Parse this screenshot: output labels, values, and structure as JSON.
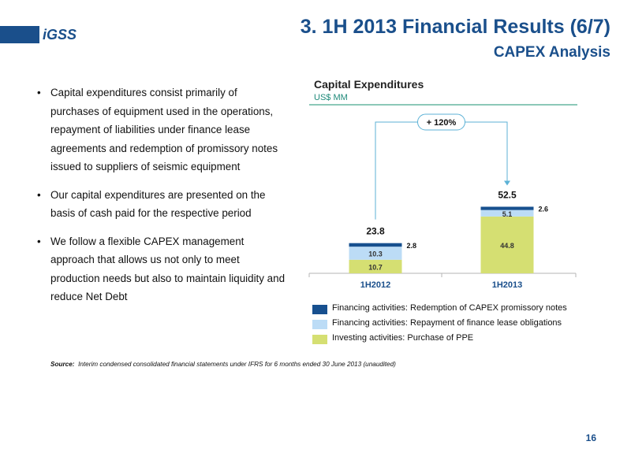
{
  "header": {
    "logo_text": "iGSS",
    "title": "3. 1H 2013 Financial Results (6/7)",
    "subtitle": "CAPEX Analysis"
  },
  "bullets": [
    "Capital expenditures consist primarily of purchases of equipment used in the operations, repayment of liabilities under finance lease agreements and redemption of promissory notes issued to suppliers of seismic equipment",
    "Our capital expenditures are presented on the basis of cash paid for the respective period",
    "We follow a flexible CAPEX management approach that allows us not only to meet production needs but also to maintain liquidity and reduce Net Debt"
  ],
  "chart_data": {
    "type": "bar",
    "stacked": true,
    "title": "Capital Expenditures",
    "ylabel": "US$ MM",
    "categories": [
      "1H2012",
      "1H2013"
    ],
    "series": [
      {
        "name": "Investing activities: Purchase of PPE",
        "values": [
          10.7,
          44.8
        ],
        "color": "#d5df72"
      },
      {
        "name": "Financing activities: Repayment of finance lease obligations",
        "values": [
          10.3,
          5.1
        ],
        "color": "#bcdcf6"
      },
      {
        "name": "Financing activities: Redemption of CAPEX promissory notes",
        "values": [
          2.8,
          2.6
        ],
        "color": "#17508f"
      }
    ],
    "totals": [
      "23.8",
      "52.5"
    ],
    "growth_label": "+ 120%",
    "ylim": [
      0,
      55
    ],
    "grid": false,
    "legend_position": "bottom"
  },
  "legend_order": [
    2,
    1,
    0
  ],
  "source": {
    "label": "Source",
    "text": "Interim condensed consolidated financial statements under IFRS for 6 months ended 30 June 2013 (unaudited)"
  },
  "page_number": "16",
  "colors": {
    "brand": "#1a4f8b",
    "accent_green": "#8cc8b8"
  }
}
